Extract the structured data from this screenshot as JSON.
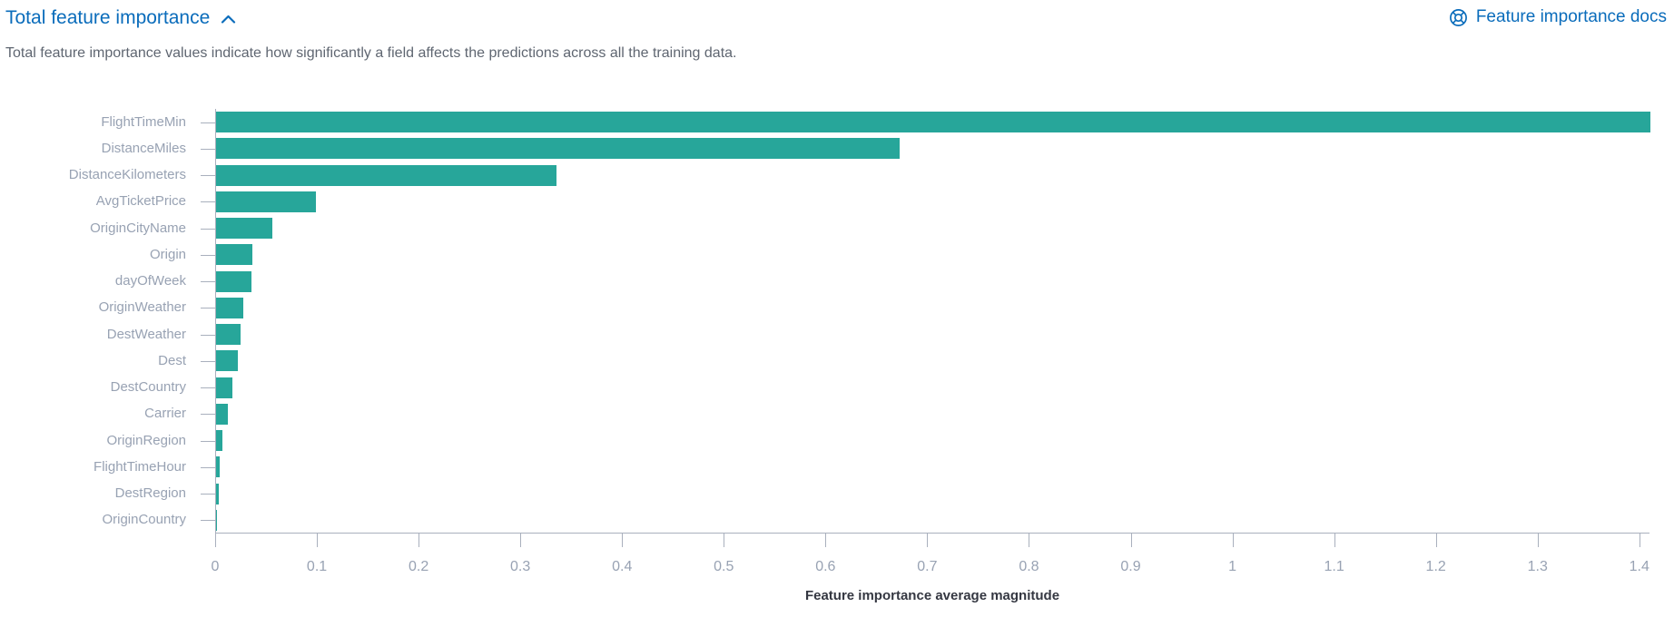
{
  "header": {
    "title": "Total feature importance",
    "collapse_icon": "chevron-up-icon",
    "docs_link_label": "Feature importance docs",
    "docs_link_icon": "help-icon"
  },
  "description": "Total feature importance values indicate how significantly a field affects the predictions across all the training data.",
  "colors": {
    "bar": "#27a69a",
    "link_blue": "#0a6cbb",
    "axis_line": "#a9b0bd",
    "tick_label": "#98a2b3",
    "axis_title": "#343741",
    "description_text": "#5f6671"
  },
  "chart_data": {
    "type": "bar",
    "orientation": "horizontal",
    "title": "",
    "xlabel": "Feature importance average magnitude",
    "ylabel": "",
    "categories": [
      "FlightTimeMin",
      "DistanceMiles",
      "DistanceKilometers",
      "AvgTicketPrice",
      "OriginCityName",
      "Origin",
      "dayOfWeek",
      "OriginWeather",
      "DestWeather",
      "Dest",
      "DestCountry",
      "Carrier",
      "OriginRegion",
      "FlightTimeHour",
      "DestRegion",
      "OriginCountry"
    ],
    "values": [
      1.41,
      0.672,
      0.335,
      0.098,
      0.055,
      0.036,
      0.035,
      0.027,
      0.024,
      0.021,
      0.016,
      0.012,
      0.006,
      0.004,
      0.003,
      0.001
    ],
    "xlim": [
      0,
      1.41
    ],
    "xticks": [
      0,
      0.1,
      0.2,
      0.3,
      0.4,
      0.5,
      0.6,
      0.7,
      0.8,
      0.9,
      1,
      1.1,
      1.2,
      1.3,
      1.4
    ],
    "grid": false,
    "legend": "none",
    "bar_color": "#27a69a"
  }
}
